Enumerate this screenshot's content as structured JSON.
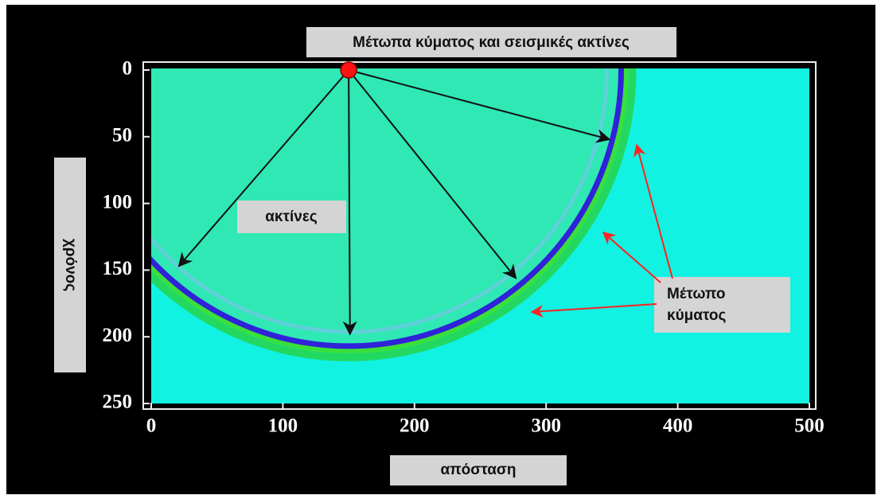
{
  "chart_data": {
    "type": "wavefront",
    "title": "Μέτωπα κύματος και σεισμικές ακτίνες",
    "xlabel": "απόσταση",
    "ylabel": "χρόνος",
    "xlim": [
      0,
      500
    ],
    "ylim": [
      250,
      0
    ],
    "xticks": [
      0,
      100,
      200,
      300,
      400,
      500
    ],
    "yticks": [
      0,
      50,
      100,
      150,
      200,
      250
    ],
    "source": {
      "x": 150,
      "y": 0
    },
    "wavefront_radius": 207,
    "rays": [
      {
        "x": 21,
        "y": 147
      },
      {
        "x": 151,
        "y": 198
      },
      {
        "x": 277,
        "y": 156
      },
      {
        "x": 348,
        "y": 52
      }
    ],
    "annotations": {
      "rays": "ακτίνες",
      "wavefront": [
        "Μέτωπο",
        "κύματος"
      ]
    }
  }
}
